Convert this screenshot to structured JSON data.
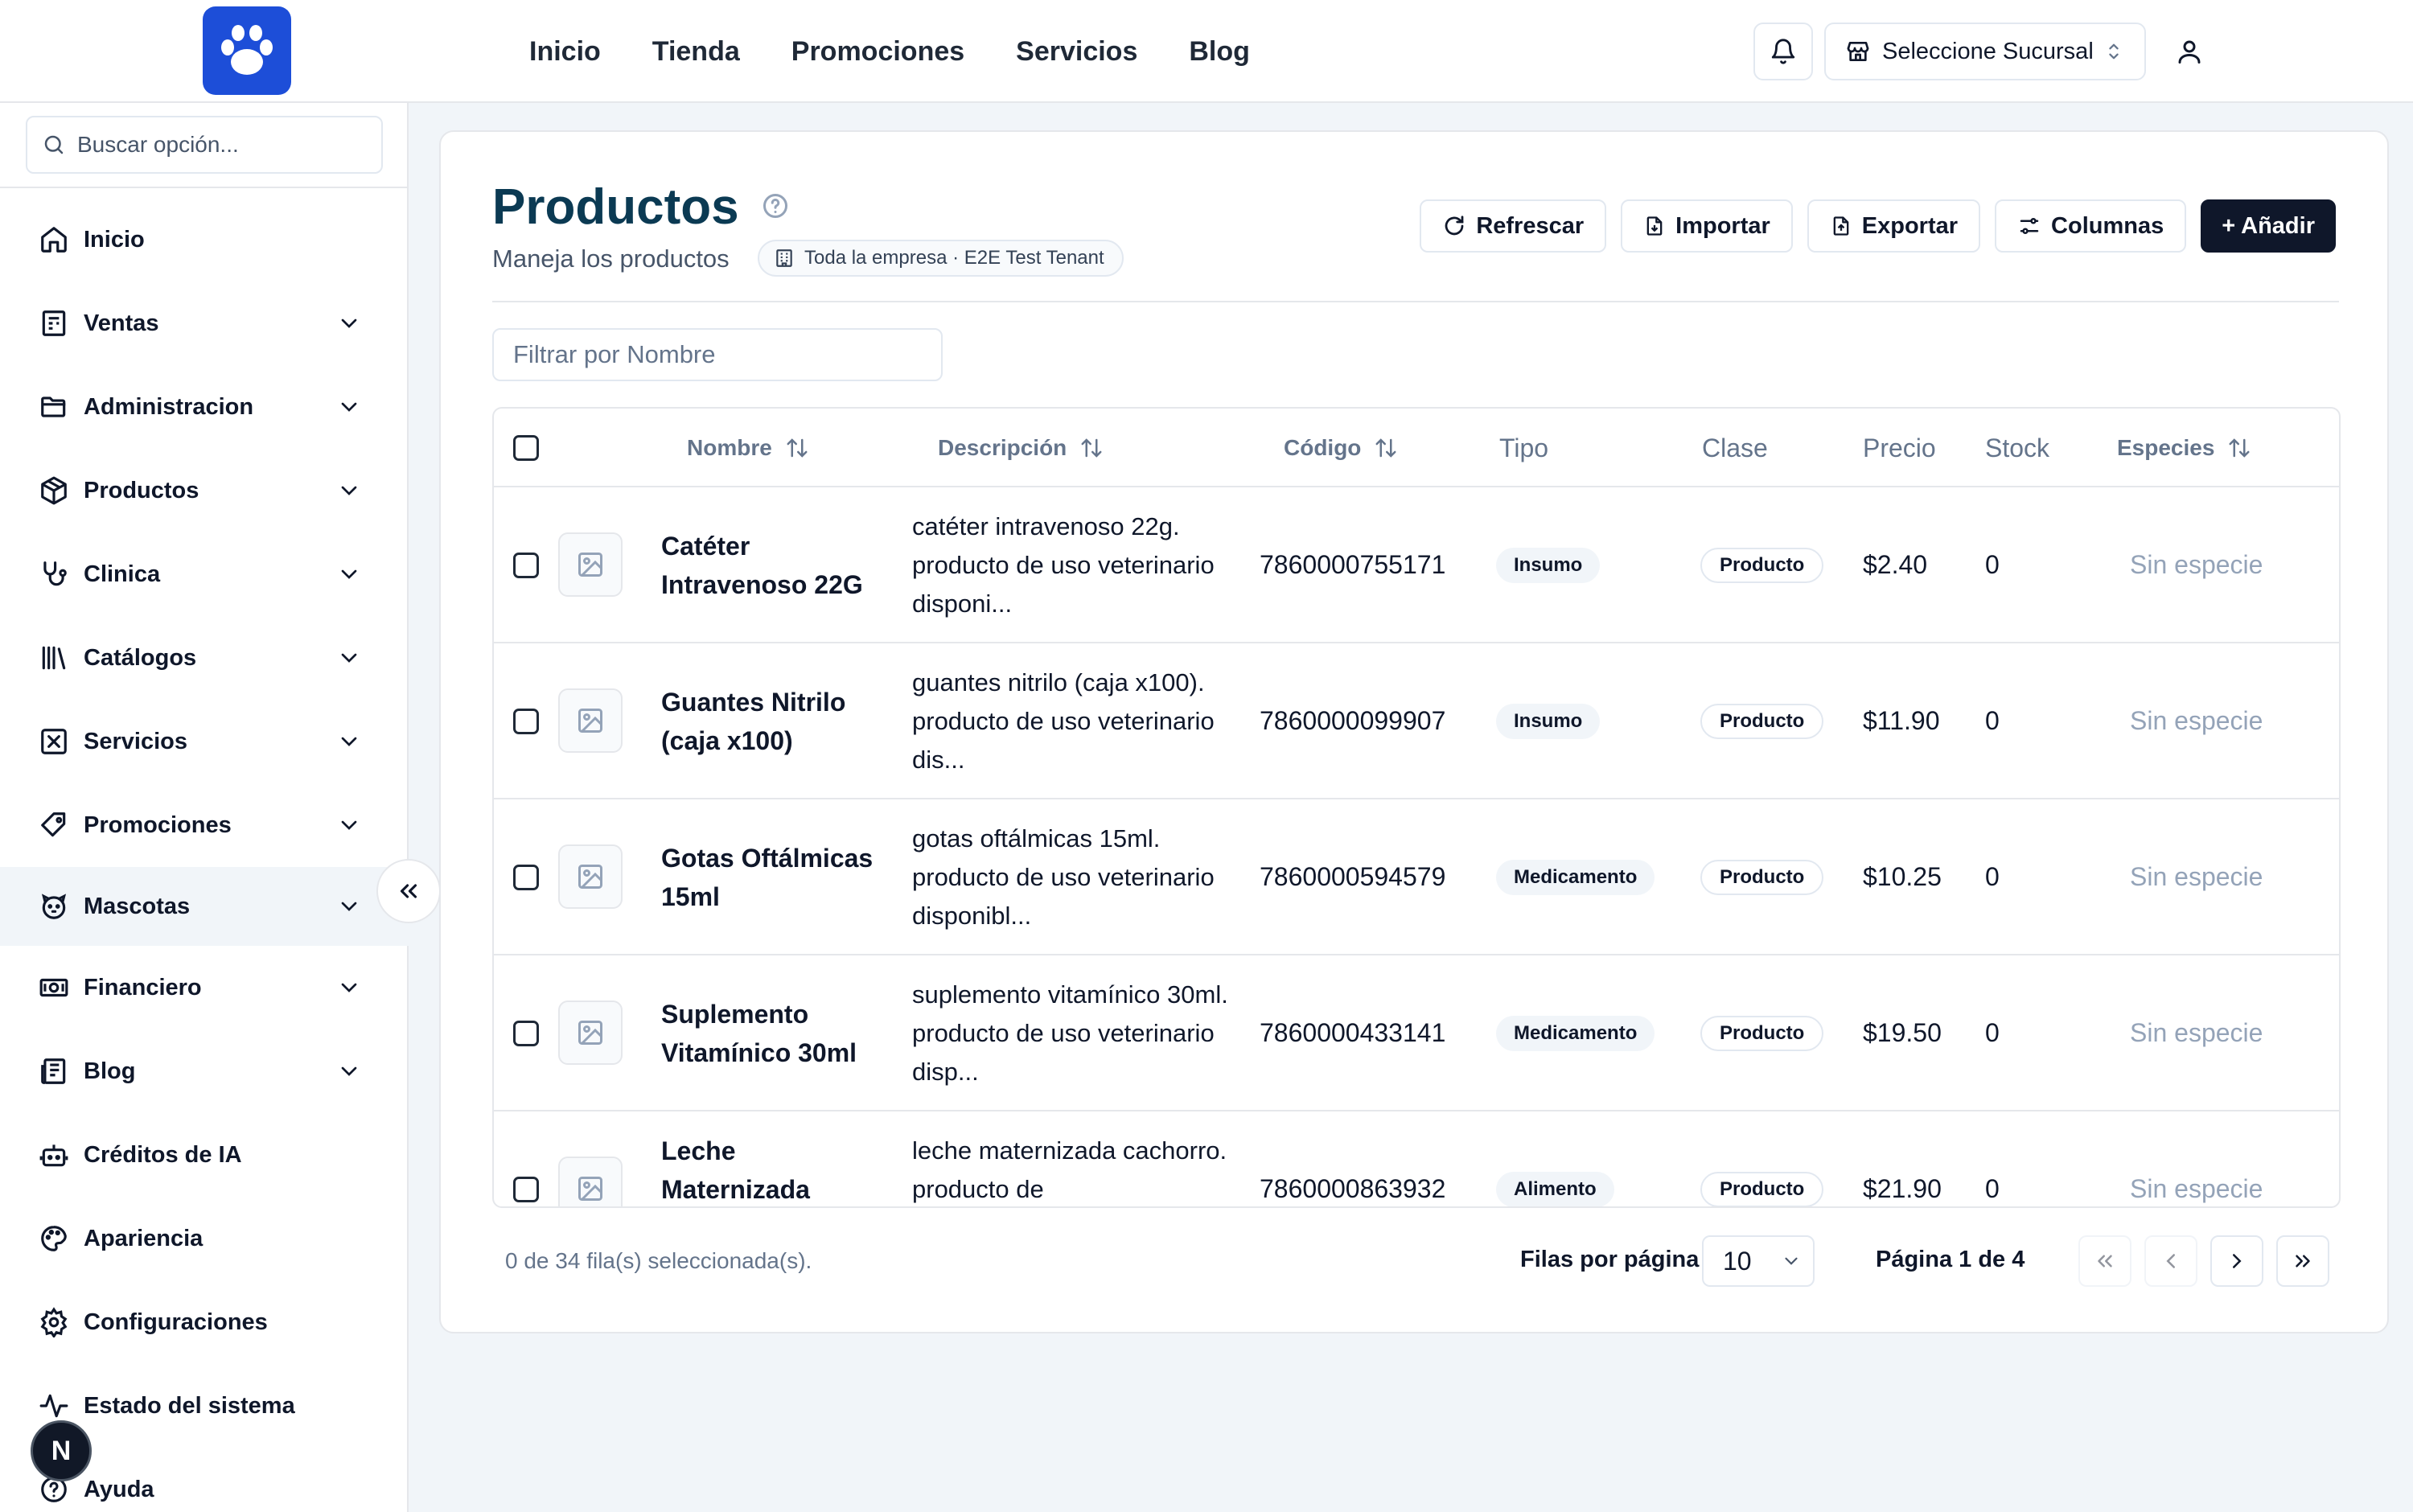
{
  "header": {
    "nav": [
      "Inicio",
      "Tienda",
      "Promociones",
      "Servicios",
      "Blog"
    ],
    "branch_label": "Seleccione Sucursal"
  },
  "sidebar": {
    "search_placeholder": "Buscar opción...",
    "items": [
      {
        "label": "Inicio",
        "icon": "home-icon",
        "expandable": false
      },
      {
        "label": "Ventas",
        "icon": "receipt-icon",
        "expandable": true
      },
      {
        "label": "Administracion",
        "icon": "folder-icon",
        "expandable": true
      },
      {
        "label": "Productos",
        "icon": "package-icon",
        "expandable": true
      },
      {
        "label": "Clinica",
        "icon": "stethoscope-icon",
        "expandable": true
      },
      {
        "label": "Catálogos",
        "icon": "library-icon",
        "expandable": true
      },
      {
        "label": "Servicios",
        "icon": "services-icon",
        "expandable": true
      },
      {
        "label": "Promociones",
        "icon": "tag-icon",
        "expandable": true
      },
      {
        "label": "Mascotas",
        "icon": "pet-icon",
        "expandable": true,
        "active": true
      },
      {
        "label": "Financiero",
        "icon": "banknote-icon",
        "expandable": true
      },
      {
        "label": "Blog",
        "icon": "newspaper-icon",
        "expandable": true
      },
      {
        "label": "Créditos de IA",
        "icon": "bot-icon",
        "expandable": false
      },
      {
        "label": "Apariencia",
        "icon": "palette-icon",
        "expandable": false
      },
      {
        "label": "Configuraciones",
        "icon": "gear-icon",
        "expandable": false
      },
      {
        "label": "Estado del sistema",
        "icon": "activity-icon",
        "expandable": false
      },
      {
        "label": "Ayuda",
        "icon": "help-icon",
        "expandable": false
      }
    ],
    "dev_badge": "N"
  },
  "page": {
    "title": "Productos",
    "subtitle": "Maneja los productos",
    "scope": "Toda la empresa · E2E Test Tenant",
    "actions": {
      "refresh": "Refrescar",
      "import": "Importar",
      "export": "Exportar",
      "columns": "Columnas",
      "add": "+ Añadir"
    },
    "filter_placeholder": "Filtrar por Nombre"
  },
  "table": {
    "columns": {
      "name": "Nombre",
      "description": "Descripción",
      "code": "Código",
      "type": "Tipo",
      "class": "Clase",
      "price": "Precio",
      "stock": "Stock",
      "species": "Especies"
    },
    "rows": [
      {
        "name": "Catéter Intravenoso 22G",
        "description": "catéter intravenoso 22g. producto de uso veterinario disponi...",
        "code": "7860000755171",
        "type": "Insumo",
        "class": "Producto",
        "price": "$2.40",
        "stock": "0",
        "species": "Sin especie"
      },
      {
        "name": "Guantes Nitrilo (caja x100)",
        "description": "guantes nitrilo (caja x100). producto de uso veterinario dis...",
        "code": "7860000099907",
        "type": "Insumo",
        "class": "Producto",
        "price": "$11.90",
        "stock": "0",
        "species": "Sin especie"
      },
      {
        "name": "Gotas Oftálmicas 15ml",
        "description": "gotas oftálmicas 15ml. producto de uso veterinario disponibl...",
        "code": "7860000594579",
        "type": "Medicamento",
        "class": "Producto",
        "price": "$10.25",
        "stock": "0",
        "species": "Sin especie"
      },
      {
        "name": "Suplemento Vitamínico 30ml",
        "description": "suplemento vitamínico 30ml. producto de uso veterinario disp...",
        "code": "7860000433141",
        "type": "Medicamento",
        "class": "Producto",
        "price": "$19.50",
        "stock": "0",
        "species": "Sin especie"
      },
      {
        "name": "Leche Maternizada",
        "description": "leche maternizada cachorro. producto de",
        "code": "7860000863932",
        "type": "Alimento",
        "class": "Producto",
        "price": "$21.90",
        "stock": "0",
        "species": "Sin especie"
      }
    ]
  },
  "footer": {
    "selection": "0 de 34 fila(s) seleccionada(s).",
    "rows_per_page_label": "Filas por página",
    "rows_per_page_value": "10",
    "page_label": "Página 1 de 4"
  },
  "colors": {
    "brand": "#1d4ed8",
    "title": "#0b3a53",
    "primary_button": "#0f172a"
  }
}
